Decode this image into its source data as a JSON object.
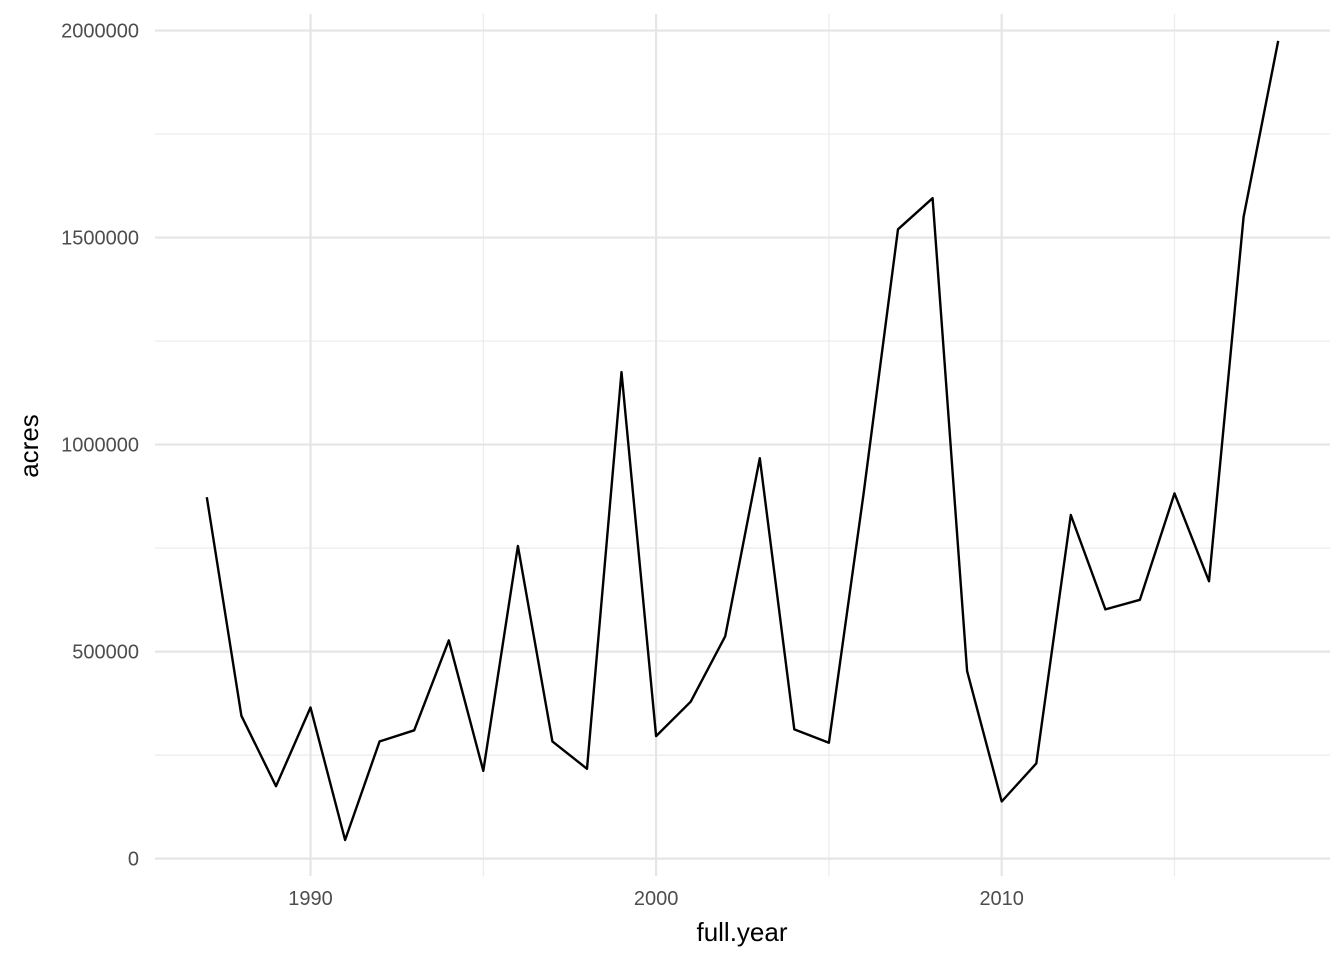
{
  "chart_data": {
    "type": "line",
    "xlabel": "full.year",
    "ylabel": "acres",
    "grid": true,
    "legend": "none",
    "xlim": [
      1985.5,
      2019.5
    ],
    "ylim": [
      -42000,
      2040000
    ],
    "x_major_ticks": [
      1990,
      2000,
      2010
    ],
    "x_minor_ticks": [
      1995,
      2005,
      2015
    ],
    "y_major_ticks": [
      0,
      500000,
      1000000,
      1500000,
      2000000
    ],
    "y_minor_ticks": [
      250000,
      750000,
      1250000,
      1750000
    ],
    "x_tick_labels": [
      "1990",
      "2000",
      "2010"
    ],
    "y_tick_labels": [
      "0",
      "500000",
      "1000000",
      "1500000",
      "2000000"
    ],
    "line_color": "#000000",
    "grid_color": "#e5e5e5",
    "series": [
      {
        "x": [
          1987,
          1988,
          1989,
          1990,
          1991,
          1992,
          1993,
          1994,
          1995,
          1996,
          1997,
          1998,
          1999,
          2000,
          2001,
          2002,
          2003,
          2004,
          2005,
          2006,
          2007,
          2008,
          2009,
          2010,
          2011,
          2012,
          2013,
          2014,
          2015,
          2016,
          2017,
          2018
        ],
        "values": [
          873000,
          345000,
          175000,
          365000,
          45000,
          283000,
          310000,
          527000,
          212000,
          755000,
          283000,
          217000,
          1175000,
          296000,
          379000,
          537000,
          967000,
          312000,
          280000,
          880000,
          1520000,
          1595000,
          453000,
          138000,
          230000,
          830000,
          602000,
          625000,
          882000,
          670000,
          1550000,
          1975000
        ]
      }
    ]
  }
}
